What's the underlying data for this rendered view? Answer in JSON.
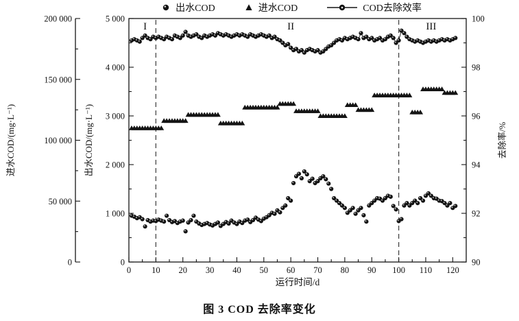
{
  "page": {
    "caption": "图 3  COD 去除率变化"
  },
  "colors": {
    "ink": "#141414",
    "background": "#ffffff",
    "dashed_line": "#3a3a3a"
  },
  "legend": {
    "items": [
      {
        "label": "出水COD",
        "marker": "sphere-circle"
      },
      {
        "label": "进水COD",
        "marker": "filled-triangle"
      },
      {
        "label": "COD去除效率",
        "marker": "line-circle"
      }
    ]
  },
  "chart_data": {
    "type": "scatter",
    "title": "图 3 COD 去除率变化",
    "grid": false,
    "legend_position": "top",
    "x_axis": {
      "label": "运行时间/d",
      "min": 0,
      "max": 125,
      "major_tick_step": 10,
      "minor_tick_step": 5,
      "tick_values": [
        0,
        10,
        20,
        30,
        40,
        50,
        60,
        70,
        80,
        90,
        100,
        110,
        120
      ],
      "tick_labels": [
        "0",
        "10",
        "20",
        "30",
        "40",
        "50",
        "60",
        "70",
        "80",
        "90",
        "100",
        "110",
        "120"
      ]
    },
    "left_outer_axis": {
      "label": "进水COD/(mg·L⁻¹)",
      "min": 0,
      "max": 200000,
      "major_tick_step": 50000,
      "minor_tick_step": 25000,
      "tick_values": [
        0,
        50000,
        100000,
        150000,
        200000
      ],
      "tick_labels": [
        "0",
        "50 000",
        "100 000",
        "150 000",
        "200 000"
      ]
    },
    "left_inner_axis": {
      "label": "出水COD/(mg·L⁻¹)",
      "min": 0,
      "max": 5000,
      "major_tick_step": 1000,
      "minor_tick_step": 500,
      "tick_values": [
        0,
        1000,
        2000,
        3000,
        4000,
        5000
      ],
      "tick_labels": [
        "0",
        "1 000",
        "2 000",
        "3 000",
        "4 000",
        "5 000"
      ]
    },
    "right_axis": {
      "label": "去除率/%",
      "min": 90,
      "max": 100,
      "major_tick_step": 2,
      "minor_tick_step": 1,
      "tick_values": [
        90,
        92,
        94,
        96,
        98,
        100
      ],
      "tick_labels": [
        "90",
        "92",
        "94",
        "96",
        "98",
        "100"
      ]
    },
    "phase_lines_x": [
      10,
      100
    ],
    "phase_labels": [
      {
        "text": "I",
        "x_day": 6
      },
      {
        "text": "II",
        "x_day": 60
      },
      {
        "text": "III",
        "x_day": 112
      }
    ],
    "days": [
      1,
      2,
      3,
      4,
      5,
      6,
      7,
      8,
      9,
      10,
      11,
      12,
      13,
      14,
      15,
      16,
      17,
      18,
      19,
      20,
      21,
      22,
      23,
      24,
      25,
      26,
      27,
      28,
      29,
      30,
      31,
      32,
      33,
      34,
      35,
      36,
      37,
      38,
      39,
      40,
      41,
      42,
      43,
      44,
      45,
      46,
      47,
      48,
      49,
      50,
      51,
      52,
      53,
      54,
      55,
      56,
      57,
      58,
      59,
      60,
      61,
      62,
      63,
      64,
      65,
      66,
      67,
      68,
      69,
      70,
      71,
      72,
      73,
      74,
      75,
      76,
      77,
      78,
      79,
      80,
      81,
      82,
      83,
      84,
      85,
      86,
      87,
      88,
      89,
      90,
      91,
      92,
      93,
      94,
      95,
      96,
      97,
      98,
      99,
      100,
      101,
      102,
      103,
      104,
      105,
      106,
      107,
      108,
      109,
      110,
      111,
      112,
      113,
      114,
      115,
      116,
      117,
      118,
      119,
      120,
      121
    ],
    "series": [
      {
        "name": "出水COD",
        "axis": "left_inner_axis",
        "marker": "sphere-circle",
        "unit": "mg·L⁻¹",
        "values": [
          950,
          930,
          900,
          920,
          880,
          730,
          860,
          830,
          850,
          840,
          870,
          850,
          830,
          950,
          860,
          820,
          840,
          800,
          830,
          850,
          630,
          810,
          860,
          950,
          830,
          790,
          760,
          780,
          800,
          770,
          750,
          780,
          810,
          740,
          780,
          820,
          790,
          850,
          810,
          780,
          830,
          800,
          850,
          870,
          820,
          860,
          910,
          870,
          840,
          890,
          920,
          960,
          1010,
          990,
          1060,
          1020,
          1110,
          1160,
          1310,
          1260,
          1620,
          1760,
          1810,
          1720,
          1860,
          1800,
          1660,
          1710,
          1620,
          1660,
          1720,
          1760,
          1700,
          1610,
          1500,
          1310,
          1260,
          1210,
          1160,
          1110,
          1010,
          1060,
          1110,
          990,
          1060,
          1110,
          960,
          830,
          1160,
          1210,
          1260,
          1310,
          1300,
          1260,
          1310,
          1360,
          1340,
          1150,
          1080,
          840,
          880,
          1160,
          1210,
          1160,
          1210,
          1260,
          1210,
          1310,
          1260,
          1360,
          1410,
          1360,
          1310,
          1300,
          1260,
          1250,
          1210,
          1160,
          1210,
          1110,
          1150
        ]
      },
      {
        "name": "进水COD",
        "axis": "left_outer_axis",
        "marker": "filled-triangle",
        "unit": "mg·L⁻¹",
        "values": [
          110000,
          110000,
          110000,
          110000,
          110000,
          110000,
          110000,
          110000,
          110000,
          110000,
          110000,
          110000,
          116000,
          116000,
          116000,
          116000,
          116000,
          116000,
          116000,
          116000,
          116000,
          121000,
          121000,
          121000,
          121000,
          121000,
          121000,
          121000,
          121000,
          121000,
          121000,
          121000,
          121000,
          114000,
          114000,
          114000,
          114000,
          114000,
          114000,
          114000,
          114000,
          114000,
          127000,
          127000,
          127000,
          127000,
          127000,
          127000,
          127000,
          127000,
          127000,
          127000,
          127000,
          127000,
          127000,
          130000,
          130000,
          130000,
          130000,
          130000,
          130000,
          124000,
          124000,
          124000,
          124000,
          124000,
          124000,
          124000,
          124000,
          124000,
          120000,
          120000,
          120000,
          120000,
          120000,
          120000,
          120000,
          120000,
          120000,
          120000,
          129000,
          129000,
          129000,
          129000,
          125000,
          125000,
          125000,
          125000,
          125000,
          125000,
          137000,
          137000,
          137000,
          137000,
          137000,
          137000,
          137000,
          137000,
          137000,
          137000,
          137000,
          137000,
          137000,
          137000,
          123000,
          123000,
          123000,
          123000,
          142000,
          142000,
          142000,
          142000,
          142000,
          142000,
          142000,
          142000,
          139000,
          139000,
          139000,
          139000,
          139000
        ]
      },
      {
        "name": "COD去除效率",
        "axis": "right_axis",
        "marker": "line-circle",
        "unit": "%",
        "values": [
          99.1,
          99.15,
          99.1,
          99.05,
          99.2,
          99.3,
          99.2,
          99.15,
          99.25,
          99.2,
          99.25,
          99.2,
          99.15,
          99.25,
          99.2,
          99.15,
          99.3,
          99.25,
          99.2,
          99.3,
          99.45,
          99.3,
          99.25,
          99.3,
          99.35,
          99.25,
          99.2,
          99.3,
          99.25,
          99.3,
          99.35,
          99.3,
          99.4,
          99.35,
          99.3,
          99.35,
          99.3,
          99.25,
          99.3,
          99.35,
          99.3,
          99.35,
          99.3,
          99.25,
          99.35,
          99.3,
          99.25,
          99.3,
          99.35,
          99.3,
          99.25,
          99.3,
          99.2,
          99.25,
          99.15,
          99.1,
          99.0,
          98.9,
          98.95,
          98.8,
          98.7,
          98.75,
          98.65,
          98.7,
          98.6,
          98.7,
          98.75,
          98.7,
          98.65,
          98.7,
          98.6,
          98.65,
          98.75,
          98.85,
          98.9,
          99.0,
          99.1,
          99.15,
          99.1,
          99.2,
          99.15,
          99.2,
          99.25,
          99.2,
          99.15,
          99.4,
          99.2,
          99.25,
          99.15,
          99.2,
          99.1,
          99.15,
          99.2,
          99.1,
          99.15,
          99.25,
          99.3,
          99.2,
          99.0,
          99.1,
          99.5,
          99.4,
          99.25,
          99.15,
          99.1,
          99.05,
          99.1,
          99.05,
          99.0,
          99.05,
          99.1,
          99.05,
          99.1,
          99.05,
          99.1,
          99.15,
          99.1,
          99.15,
          99.1,
          99.15,
          99.2
        ]
      }
    ]
  }
}
